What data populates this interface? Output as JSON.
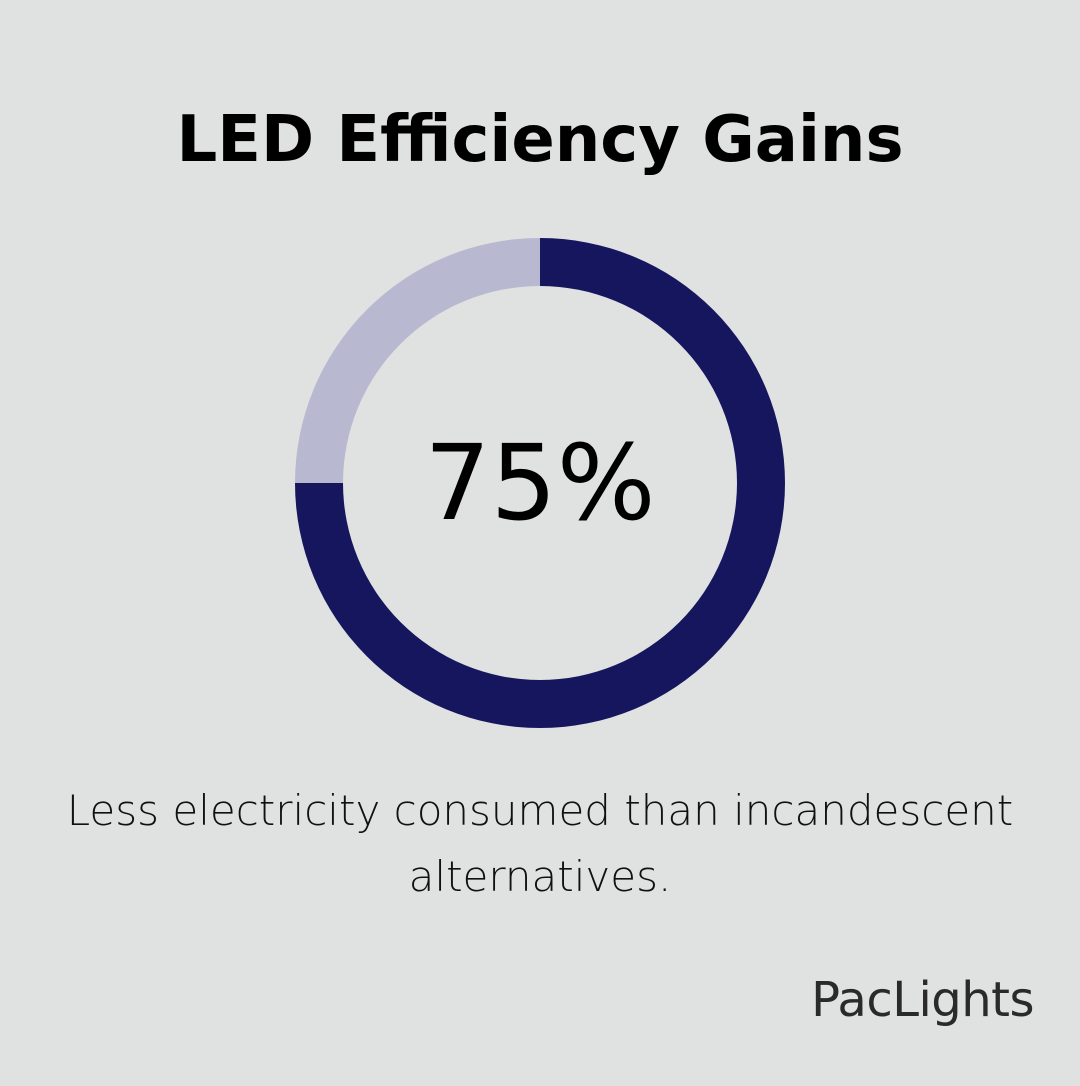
{
  "chart_data": {
    "type": "pie",
    "title": "LED Efficiency Gains",
    "center_label": "75%",
    "caption": "Less electricity consumed than incandescent alternatives.",
    "values": [
      75,
      25
    ],
    "colors": [
      "#16165e",
      "#b8b9d0"
    ],
    "unit": "%"
  },
  "brand": {
    "name": "PacLights"
  }
}
